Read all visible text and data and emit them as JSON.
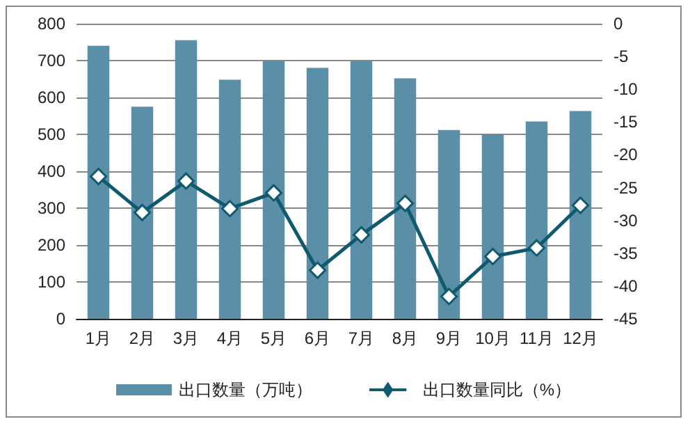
{
  "chart_data": {
    "type": "bar",
    "categories": [
      "1月",
      "2月",
      "3月",
      "4月",
      "5月",
      "6月",
      "7月",
      "8月",
      "9月",
      "10月",
      "11月",
      "12月"
    ],
    "series": [
      {
        "name": "出口数量（万吨）",
        "color": "#5b8fa8",
        "values": [
          740,
          575,
          755,
          648,
          698,
          680,
          698,
          652,
          512,
          500,
          535,
          563
        ]
      },
      {
        "name": "出口数量同比（%）",
        "type": "line",
        "axis": "y2",
        "color": "#0f5a6e",
        "marker": "diamond",
        "values": [
          -23.3,
          -28.8,
          -24.0,
          -28.2,
          -25.8,
          -37.6,
          -32.2,
          -27.4,
          -41.6,
          -35.5,
          -34.2,
          -27.7
        ]
      }
    ],
    "ylim": [
      0,
      800
    ],
    "yticks": [
      0,
      100,
      200,
      300,
      400,
      500,
      600,
      700,
      800
    ],
    "y2lim": [
      -45,
      0
    ],
    "y2ticks": [
      -45,
      -40,
      -35,
      -30,
      -25,
      -20,
      -15,
      -10,
      -5,
      0
    ],
    "grid": "y",
    "legend": "bottom"
  }
}
